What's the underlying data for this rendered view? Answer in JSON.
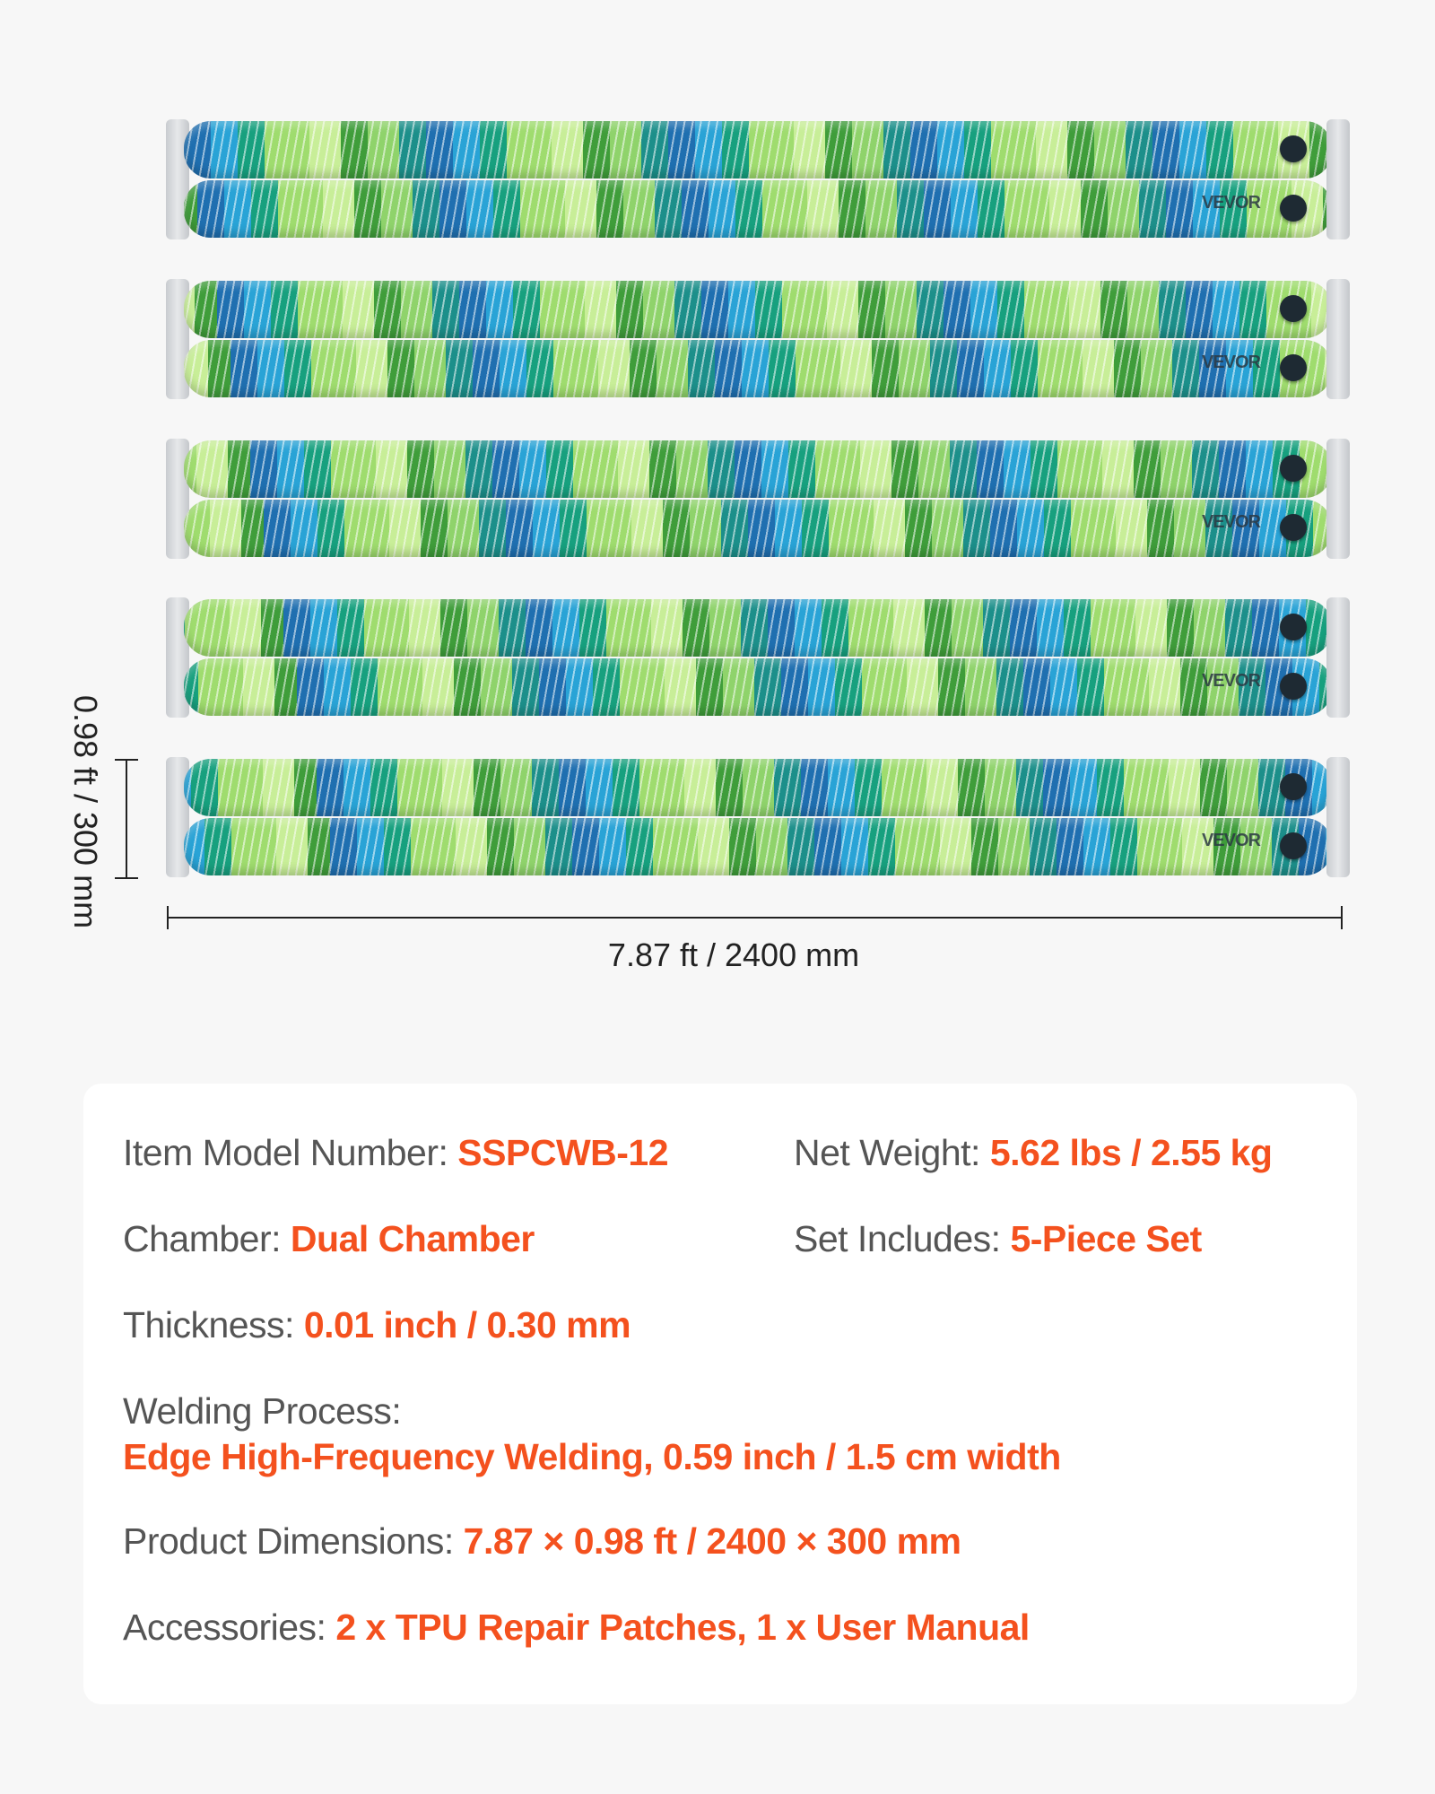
{
  "product": {
    "brand_logo": "VEVOR",
    "piece_count": 5
  },
  "dimensions": {
    "height_label": "0.98 ft / 300 mm",
    "length_label": "7.87 ft / 2400 mm"
  },
  "colors": {
    "accent": "#f4511e",
    "label": "#555555",
    "background": "#f7f7f7"
  },
  "specs": [
    {
      "label": "Item Model Number: ",
      "value": "SSPCWB-12"
    },
    {
      "label": "Net Weight: ",
      "value": "5.62 lbs / 2.55 kg"
    },
    {
      "label": "Chamber: ",
      "value": "Dual Chamber"
    },
    {
      "label": "Set Includes: ",
      "value": "5-Piece Set"
    },
    {
      "label": "Thickness: ",
      "value": "0.01 inch / 0.30 mm"
    },
    {
      "label": "Welding Process:",
      "value": "Edge High-Frequency Welding, 0.59 inch / 1.5 cm width"
    },
    {
      "label": "Product Dimensions: ",
      "value": "7.87 × 0.98 ft / 2400 × 300 mm"
    },
    {
      "label": "Accessories: ",
      "value": "2 x TPU Repair Patches, 1 x User Manual"
    }
  ]
}
